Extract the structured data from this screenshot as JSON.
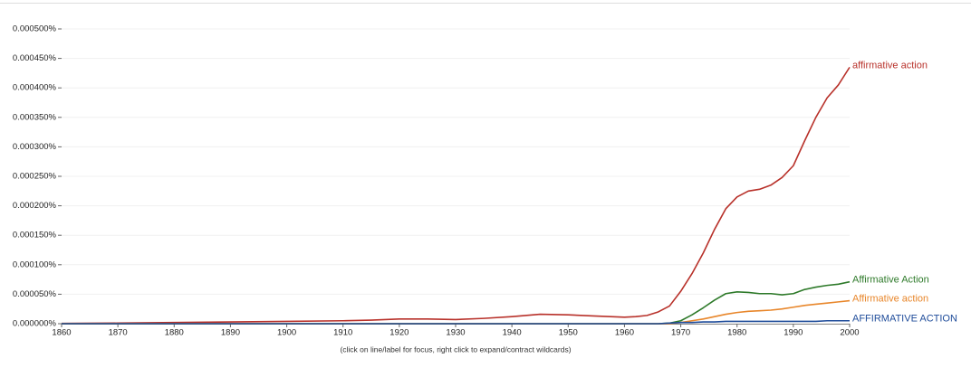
{
  "chart_data": {
    "type": "line",
    "note": "(click on line/label for focus, right click to expand/contract wildcards)",
    "x": [
      1860,
      1870,
      1880,
      1890,
      1900,
      1910,
      1915,
      1920,
      1925,
      1930,
      1935,
      1940,
      1945,
      1950,
      1955,
      1960,
      1962,
      1964,
      1966,
      1968,
      1970,
      1972,
      1974,
      1976,
      1978,
      1980,
      1982,
      1984,
      1986,
      1988,
      1990,
      1992,
      1994,
      1996,
      1998,
      2000
    ],
    "series": [
      {
        "name": "affirmative action",
        "color": "#b8312a",
        "values": [
          5e-07,
          1e-06,
          2e-06,
          3e-06,
          4e-06,
          5e-06,
          6e-06,
          8e-06,
          8e-06,
          7e-06,
          9e-06,
          1.2e-05,
          1.6e-05,
          1.5e-05,
          1.3e-05,
          1.1e-05,
          1.2e-05,
          1.4e-05,
          2e-05,
          3e-05,
          5.5e-05,
          8.5e-05,
          0.00012,
          0.00016,
          0.000195,
          0.000215,
          0.000225,
          0.000228,
          0.000235,
          0.000248,
          0.000268,
          0.00031,
          0.00035,
          0.000383,
          0.000405,
          0.000435
        ]
      },
      {
        "name": "Affirmative Action",
        "color": "#2e7a2a",
        "values": [
          0,
          0,
          0,
          0,
          0,
          0,
          0,
          0,
          0,
          0,
          0,
          0,
          0,
          0,
          0,
          0,
          0,
          0,
          0,
          1e-06,
          5e-06,
          1.5e-05,
          2.7e-05,
          4e-05,
          5.1e-05,
          5.4e-05,
          5.3e-05,
          5.1e-05,
          5.1e-05,
          4.9e-05,
          5.1e-05,
          5.8e-05,
          6.2e-05,
          6.5e-05,
          6.7e-05,
          7.1e-05
        ]
      },
      {
        "name": "Affirmative action",
        "color": "#e8862a",
        "values": [
          0,
          0,
          0,
          0,
          0,
          0,
          0,
          0,
          0,
          0,
          0,
          0,
          0,
          0,
          0,
          0,
          0,
          0,
          0,
          0,
          2e-06,
          5e-06,
          8e-06,
          1.2e-05,
          1.6e-05,
          1.9e-05,
          2.1e-05,
          2.2e-05,
          2.3e-05,
          2.5e-05,
          2.8e-05,
          3.1e-05,
          3.3e-05,
          3.5e-05,
          3.7e-05,
          3.9e-05
        ]
      },
      {
        "name": "AFFIRMATIVE ACTION",
        "color": "#1f4c9a",
        "values": [
          0,
          0,
          0,
          0,
          0,
          0,
          0,
          0,
          0,
          0,
          0,
          0,
          0,
          0,
          0,
          0,
          0,
          0,
          0,
          1e-06,
          2e-06,
          2e-06,
          3e-06,
          3e-06,
          4e-06,
          4e-06,
          4e-06,
          4e-06,
          4e-06,
          4e-06,
          4e-06,
          4e-06,
          4e-06,
          5e-06,
          5e-06,
          5e-06
        ]
      }
    ],
    "xlim": [
      1860,
      2000
    ],
    "xticks": [
      1860,
      1870,
      1880,
      1890,
      1900,
      1910,
      1920,
      1930,
      1940,
      1950,
      1960,
      1970,
      1980,
      1990,
      2000
    ],
    "ylim": [
      0,
      0.0005
    ],
    "yticks": [
      {
        "value": 0,
        "label": "0.000000%"
      },
      {
        "value": 5e-05,
        "label": "0.000050%"
      },
      {
        "value": 0.0001,
        "label": "0.000100%"
      },
      {
        "value": 0.00015,
        "label": "0.000150%"
      },
      {
        "value": 0.0002,
        "label": "0.000200%"
      },
      {
        "value": 0.00025,
        "label": "0.000250%"
      },
      {
        "value": 0.0003,
        "label": "0.000300%"
      },
      {
        "value": 0.00035,
        "label": "0.000350%"
      },
      {
        "value": 0.0004,
        "label": "0.000400%"
      },
      {
        "value": 0.00045,
        "label": "0.000450%"
      },
      {
        "value": 0.0005,
        "label": "0.000500%"
      }
    ],
    "grid": true
  }
}
